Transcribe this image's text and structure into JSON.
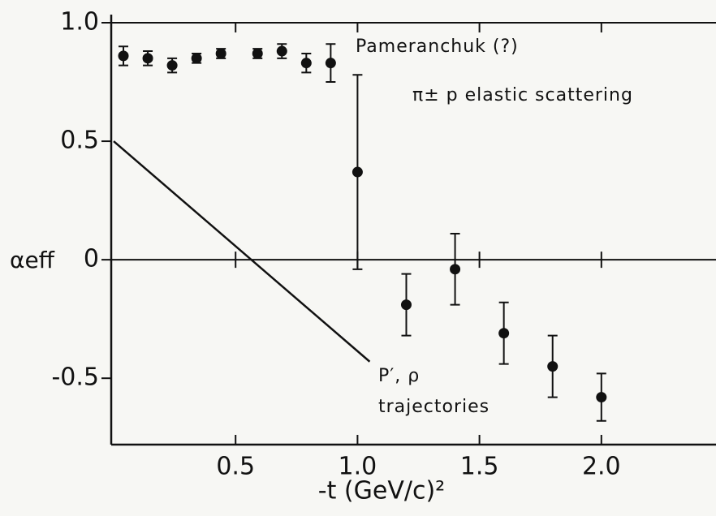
{
  "chart_data": {
    "type": "scatter",
    "x_label": "-t (GeV/c)²",
    "y_label": "αeff",
    "annotations": [
      "Pameranchuk (?)",
      "π± p elastic scattering",
      "P′, ρ",
      "trajectories"
    ],
    "xlim": [
      0,
      2.47
    ],
    "ylim": [
      -0.78,
      1.0
    ],
    "xticks": [
      0.5,
      {
        "value": 1.0,
        "label": "1.0"
      },
      1.5,
      {
        "value": 2.0,
        "label": "2.0"
      }
    ],
    "yticks": [
      {
        "value": 1.0,
        "label": "1.0"
      },
      0.5,
      0,
      -0.5
    ],
    "color": "#111111",
    "series": [
      {
        "x": [
          0.04,
          0.14,
          0.24,
          0.34,
          0.44,
          0.59,
          0.69,
          0.79,
          0.89,
          1.0,
          1.2,
          1.4,
          1.6,
          1.8,
          2.0
        ],
        "values": [
          0.86,
          0.85,
          0.82,
          0.85,
          0.87,
          0.87,
          0.88,
          0.83,
          0.83,
          0.37,
          -0.19,
          -0.04,
          -0.31,
          -0.45,
          -0.58
        ],
        "errors": [
          0.04,
          0.03,
          0.03,
          0.02,
          0.02,
          0.02,
          0.03,
          0.04,
          0.08,
          0.41,
          0.13,
          0.15,
          0.13,
          0.13,
          0.1
        ]
      },
      {
        "type": "line",
        "x": [
          0,
          1.05
        ],
        "values": [
          0.5,
          -0.43
        ]
      }
    ]
  }
}
